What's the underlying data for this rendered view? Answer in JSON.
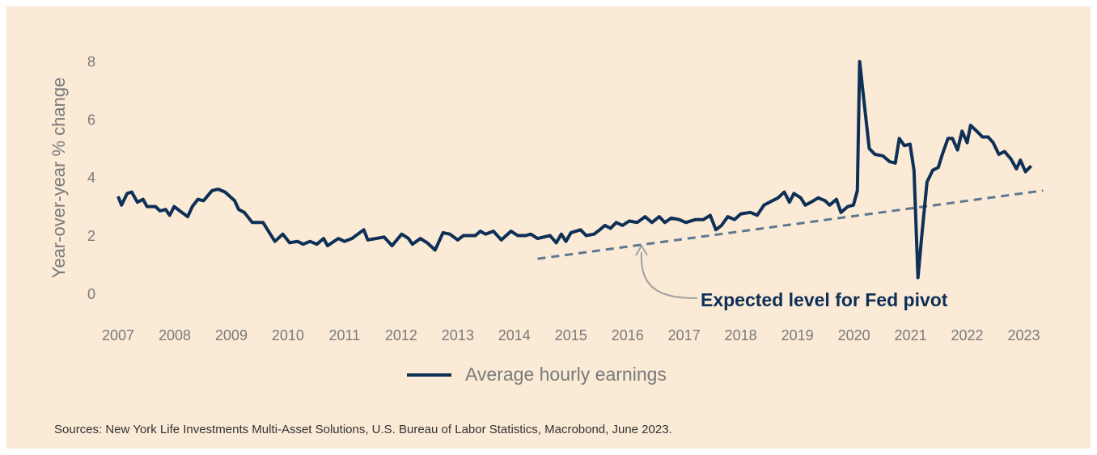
{
  "chart_data": {
    "type": "line",
    "y_label": "Year-over-year % change",
    "source": "Sources: New York Life Investments Multi-Asset Solutions, U.S. Bureau of Labor Statistics, Macrobond, June 2023.",
    "annotation": "Expected level for Fed pivot",
    "xlim": [
      2006.7,
      2023.35
    ],
    "xticks": [
      2007,
      2008,
      2009,
      2010,
      2011,
      2012,
      2013,
      2014,
      2015,
      2016,
      2017,
      2018,
      2019,
      2020,
      2021,
      2022,
      2023
    ],
    "ylim": [
      -0.4,
      8.5
    ],
    "yticks": [
      0,
      2,
      4,
      6,
      8
    ],
    "grid": false,
    "series": [
      {
        "name": "Average hourly earnings",
        "color": "#0e2f56",
        "x": [
          2007.0,
          2007.06,
          2007.16,
          2007.24,
          2007.34,
          2007.44,
          2007.51,
          2007.66,
          2007.74,
          2007.84,
          2007.91,
          2007.99,
          2008.09,
          2008.23,
          2008.31,
          2008.41,
          2008.51,
          2008.66,
          2008.77,
          2008.89,
          2009.06,
          2009.13,
          2009.23,
          2009.37,
          2009.56,
          2009.77,
          2009.91,
          2010.03,
          2010.17,
          2010.27,
          2010.39,
          2010.51,
          2010.63,
          2010.7,
          2010.89,
          2011.0,
          2011.13,
          2011.34,
          2011.41,
          2011.7,
          2011.84,
          2012.01,
          2012.13,
          2012.2,
          2012.34,
          2012.46,
          2012.6,
          2012.74,
          2012.86,
          2013.0,
          2013.1,
          2013.31,
          2013.4,
          2013.49,
          2013.63,
          2013.77,
          2013.94,
          2014.06,
          2014.2,
          2014.29,
          2014.41,
          2014.63,
          2014.74,
          2014.83,
          2014.91,
          2015.0,
          2015.17,
          2015.27,
          2015.41,
          2015.51,
          2015.6,
          2015.7,
          2015.8,
          2015.91,
          2016.03,
          2016.17,
          2016.31,
          2016.43,
          2016.56,
          2016.66,
          2016.77,
          2016.91,
          2017.03,
          2017.2,
          2017.34,
          2017.46,
          2017.56,
          2017.66,
          2017.77,
          2017.89,
          2018.0,
          2018.17,
          2018.29,
          2018.41,
          2018.56,
          2018.66,
          2018.77,
          2018.86,
          2018.94,
          2019.06,
          2019.14,
          2019.24,
          2019.37,
          2019.49,
          2019.57,
          2019.69,
          2019.77,
          2019.89,
          2019.99,
          2020.06,
          2020.1,
          2020.17,
          2020.27,
          2020.37,
          2020.51,
          2020.63,
          2020.73,
          2020.8,
          2020.89,
          2020.99,
          2021.06,
          2021.13,
          2021.2,
          2021.29,
          2021.39,
          2021.49,
          2021.56,
          2021.66,
          2021.74,
          2021.83,
          2021.91,
          2022.0,
          2022.06,
          2022.17,
          2022.27,
          2022.37,
          2022.46,
          2022.56,
          2022.66,
          2022.77,
          2022.87,
          2022.94,
          2023.03,
          2023.13
        ],
        "values": [
          3.4,
          3.1,
          3.5,
          3.55,
          3.2,
          3.3,
          3.05,
          3.05,
          2.9,
          2.95,
          2.75,
          3.05,
          2.9,
          2.7,
          3.05,
          3.3,
          3.25,
          3.6,
          3.65,
          3.55,
          3.25,
          2.95,
          2.85,
          2.5,
          2.5,
          1.85,
          2.1,
          1.8,
          1.85,
          1.75,
          1.85,
          1.75,
          1.95,
          1.7,
          1.95,
          1.85,
          1.95,
          2.25,
          1.9,
          2.0,
          1.7,
          2.1,
          1.95,
          1.75,
          1.95,
          1.8,
          1.55,
          2.15,
          2.1,
          1.9,
          2.05,
          2.05,
          2.2,
          2.1,
          2.2,
          1.9,
          2.2,
          2.05,
          2.05,
          2.1,
          1.95,
          2.05,
          1.8,
          2.1,
          1.85,
          2.15,
          2.25,
          2.05,
          2.1,
          2.25,
          2.4,
          2.3,
          2.5,
          2.4,
          2.55,
          2.5,
          2.7,
          2.5,
          2.7,
          2.5,
          2.65,
          2.6,
          2.5,
          2.6,
          2.6,
          2.75,
          2.25,
          2.4,
          2.7,
          2.6,
          2.8,
          2.85,
          2.75,
          3.1,
          3.25,
          3.35,
          3.55,
          3.2,
          3.5,
          3.35,
          3.1,
          3.2,
          3.35,
          3.25,
          3.1,
          3.3,
          2.85,
          3.05,
          3.1,
          3.6,
          8.05,
          6.8,
          5.05,
          4.85,
          4.8,
          4.6,
          4.55,
          5.4,
          5.15,
          5.2,
          4.3,
          0.6,
          2.1,
          3.9,
          4.3,
          4.4,
          4.85,
          5.4,
          5.4,
          5.0,
          5.65,
          5.25,
          5.85,
          5.65,
          5.45,
          5.45,
          5.25,
          4.85,
          4.95,
          4.7,
          4.35,
          4.65,
          4.25,
          4.45
        ]
      }
    ],
    "reference_line": {
      "color": "#5d7793",
      "x": [
        2014.41,
        2023.34
      ],
      "values": [
        1.25,
        3.6
      ]
    }
  }
}
